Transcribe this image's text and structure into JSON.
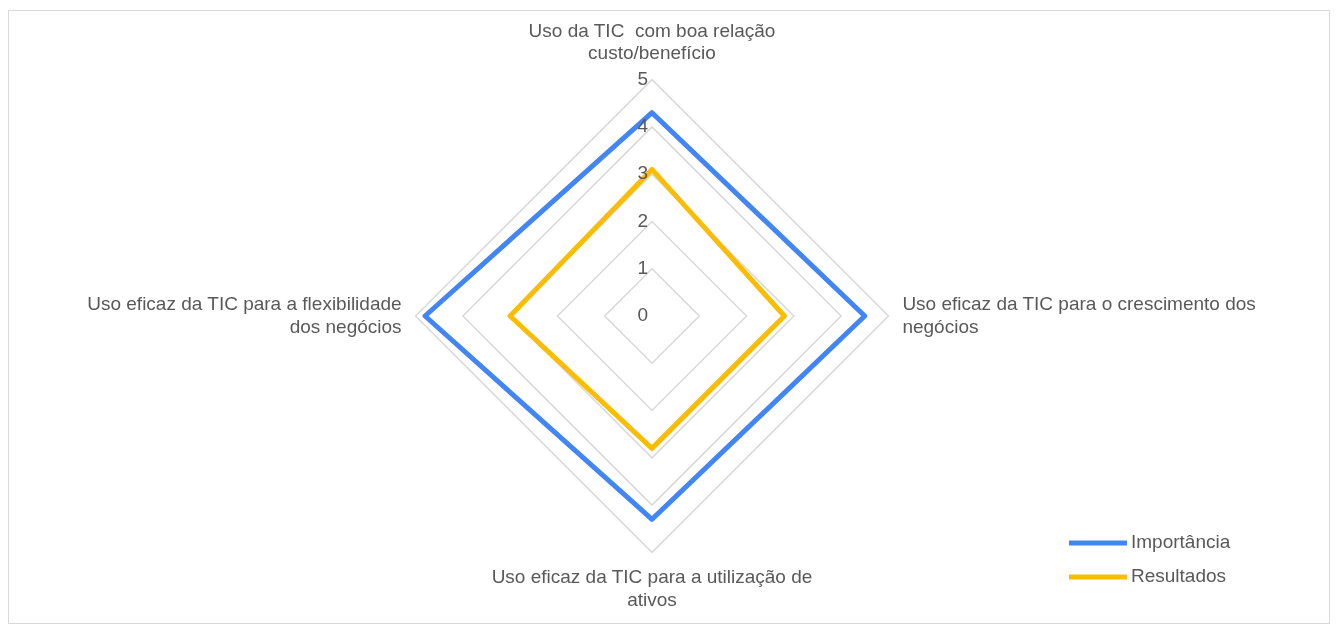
{
  "chart_data": {
    "type": "radar",
    "categories": [
      "Uso da TIC  com boa relação custo/benefício",
      "Uso eficaz da TIC para o crescimento dos negócios",
      "Uso eficaz da TIC para a utilização de ativos",
      "Uso eficaz da TIC para a flexibilidade dos negócios"
    ],
    "series": [
      {
        "name": "Importância",
        "color": "#4285f4",
        "values": [
          4.3,
          4.5,
          4.3,
          4.8
        ]
      },
      {
        "name": "Resultados",
        "color": "#fbbc04",
        "values": [
          3.1,
          2.8,
          2.8,
          3.0
        ]
      }
    ],
    "ylim": [
      0,
      5
    ],
    "yticks": [
      0,
      1,
      2,
      3,
      4,
      5
    ],
    "grid": true,
    "legend": "bottom right",
    "marker": "none"
  }
}
